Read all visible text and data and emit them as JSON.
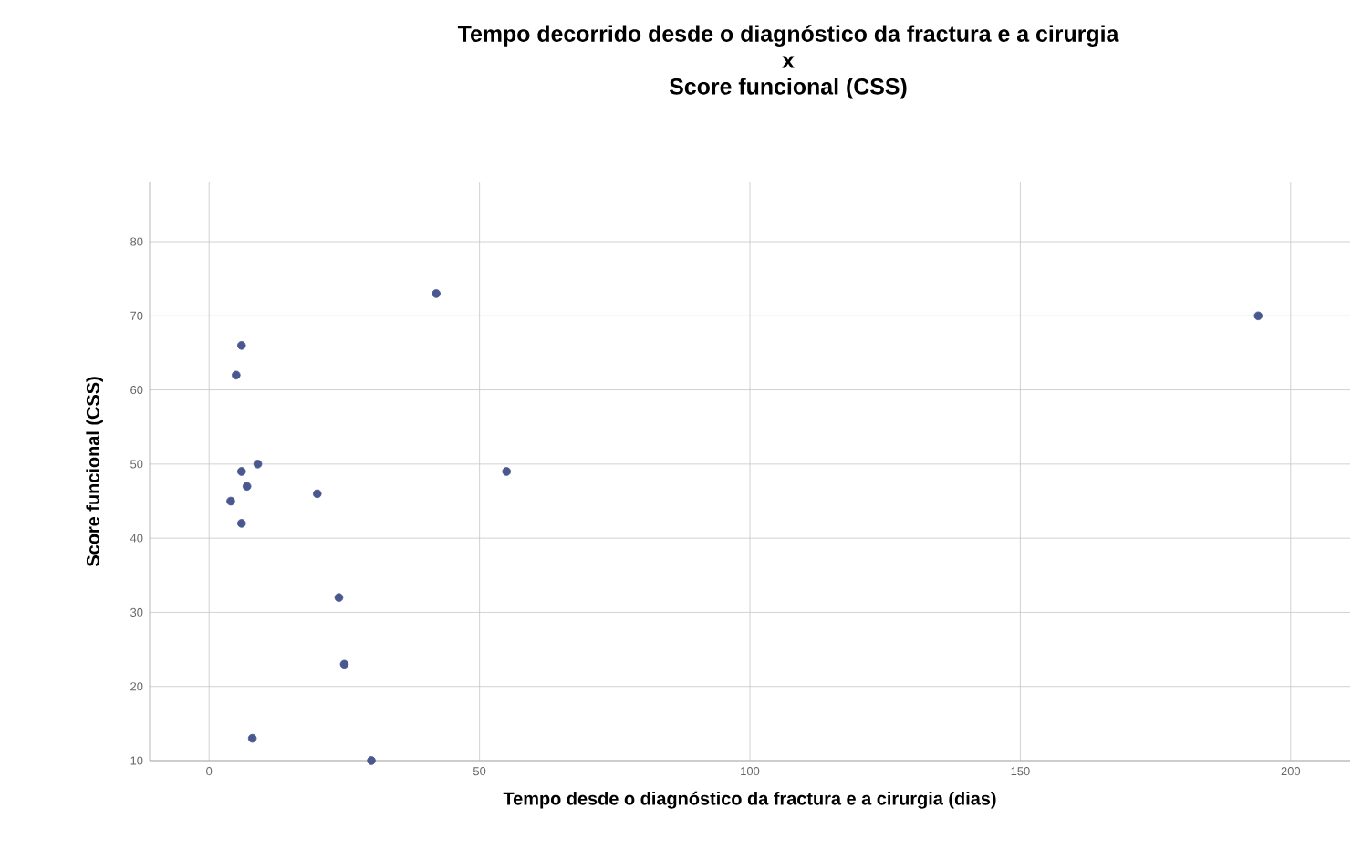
{
  "chart_data": {
    "type": "scatter",
    "title": "Tempo decorrido desde o diagnóstico da fractura e a cirurgia\nx\nScore funcional (CSS)",
    "xlabel": "Tempo desde o diagnóstico da fractura e a cirurgia (dias)",
    "ylabel": "Score funcional (CSS)",
    "x": [
      6,
      5,
      42,
      9,
      6,
      7,
      4,
      6,
      20,
      55,
      24,
      25,
      8,
      30,
      194
    ],
    "series": [
      {
        "color": "#4a5890",
        "values": [
          66,
          62,
          73,
          50,
          49,
          47,
          45,
          42,
          46,
          49,
          32,
          23,
          13,
          10,
          70
        ]
      }
    ],
    "xlim": [
      -11,
      211
    ],
    "ylim": [
      10,
      88
    ],
    "xticks": [
      0,
      50,
      100,
      150,
      200
    ],
    "yticks": [
      10,
      20,
      30,
      40,
      50,
      60,
      70,
      80
    ],
    "grid": true,
    "marker": "circle"
  }
}
